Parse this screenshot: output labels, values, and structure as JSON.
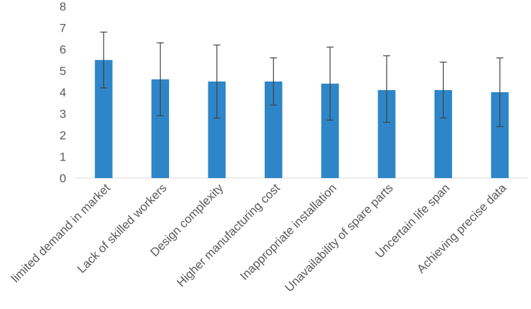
{
  "chart_data": {
    "type": "bar",
    "title": "",
    "xlabel": "",
    "ylabel": "",
    "ylim": [
      0,
      8
    ],
    "yticks": [
      0,
      1,
      2,
      3,
      4,
      5,
      6,
      7,
      8
    ],
    "grid": false,
    "legend": "none",
    "bar_color": "#2e86c8",
    "categories": [
      "limited demand in market",
      "Lack of skilled workers",
      "Design complexity",
      "Higher manufacturing cost",
      "Inappropriate installation",
      "Unavailability of spare parts",
      "Uncertain life span",
      "Achieving precise data"
    ],
    "values": [
      5.5,
      4.6,
      4.5,
      4.5,
      4.4,
      4.1,
      4.1,
      4.0
    ],
    "error_bars": {
      "upper": [
        6.8,
        6.3,
        6.2,
        5.6,
        6.1,
        5.7,
        5.4,
        5.6
      ],
      "lower": [
        4.2,
        2.9,
        2.8,
        3.4,
        2.7,
        2.6,
        2.8,
        2.4
      ]
    }
  }
}
